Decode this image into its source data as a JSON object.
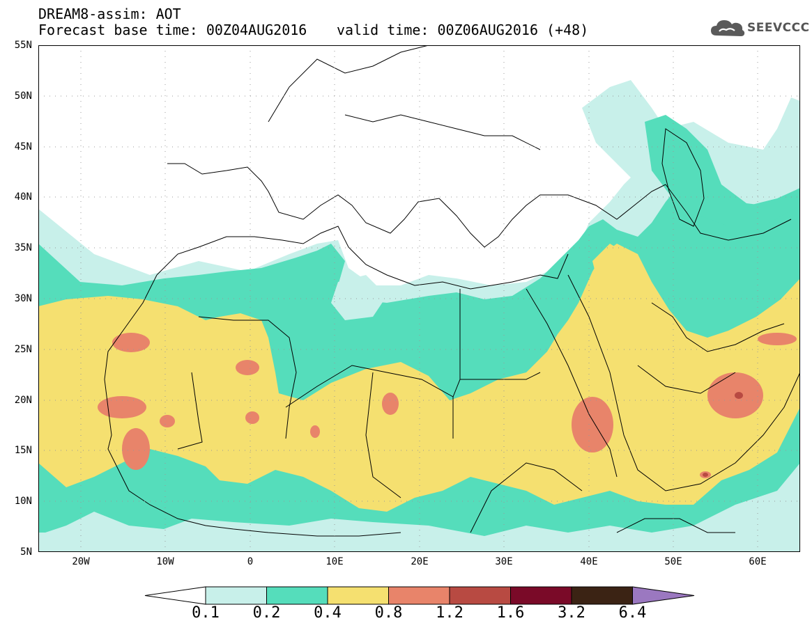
{
  "title": {
    "line1": "DREAM8-assim: AOT",
    "line2": "Forecast base time: 00Z04AUG2016",
    "valid": "valid time: 00Z06AUG2016 (+48)"
  },
  "logo": {
    "text": "SEEVCCC",
    "icon": "cloud-icon"
  },
  "map": {
    "lon_range": [
      -25,
      65
    ],
    "lat_range": [
      5,
      55
    ],
    "grid": "dotted",
    "lat_labels": [
      "55N",
      "50N",
      "45N",
      "40N",
      "35N",
      "30N",
      "25N",
      "20N",
      "15N",
      "10N",
      "5N"
    ],
    "lon_labels": [
      "20W",
      "10W",
      "0",
      "10E",
      "20E",
      "30E",
      "40E",
      "50E",
      "60E"
    ]
  },
  "colorbar": {
    "labels": [
      "0.1",
      "0.2",
      "0.4",
      "0.8",
      "1.2",
      "1.6",
      "3.2",
      "6.4"
    ],
    "colors": [
      "#c8f0ea",
      "#55ddbb",
      "#f5e070",
      "#e8846a",
      "#b84a42",
      "#7a0a28",
      "#3b2314"
    ],
    "over_color": "#9b78c0",
    "under_color": "#ffffff"
  }
}
